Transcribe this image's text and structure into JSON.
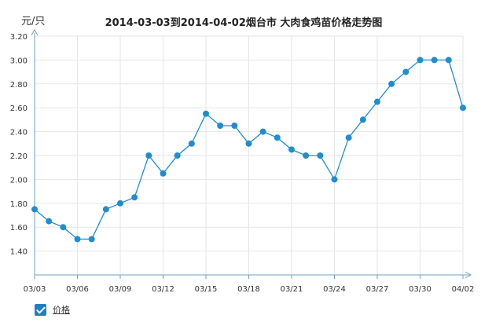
{
  "chart_data": {
    "type": "line",
    "title": "2014-03-03到2014-04-02烟台市  大肉食鸡苗价格走势图",
    "unit_label": "元/只",
    "ylim": [
      1.2,
      3.2
    ],
    "yticks": [
      "1.40",
      "1.60",
      "1.80",
      "2.00",
      "2.20",
      "2.40",
      "2.60",
      "2.80",
      "3.00",
      "3.20"
    ],
    "xlabels": [
      "03/03",
      "03/06",
      "03/09",
      "03/12",
      "03/15",
      "03/18",
      "03/21",
      "03/24",
      "03/27",
      "03/30",
      "04/02"
    ],
    "grid": true,
    "series": [
      {
        "name": "价格",
        "color": "#1f8dcf",
        "values": [
          1.75,
          1.65,
          1.6,
          1.5,
          1.5,
          1.75,
          1.8,
          1.85,
          2.2,
          2.05,
          2.2,
          2.3,
          2.55,
          2.45,
          2.45,
          2.3,
          2.4,
          2.35,
          2.25,
          2.2,
          2.2,
          2.0,
          2.35,
          2.5,
          2.65,
          2.8,
          2.9,
          3.0,
          3.0,
          3.0,
          2.6
        ]
      }
    ]
  },
  "legend": {
    "label": "价格",
    "checked": true
  }
}
